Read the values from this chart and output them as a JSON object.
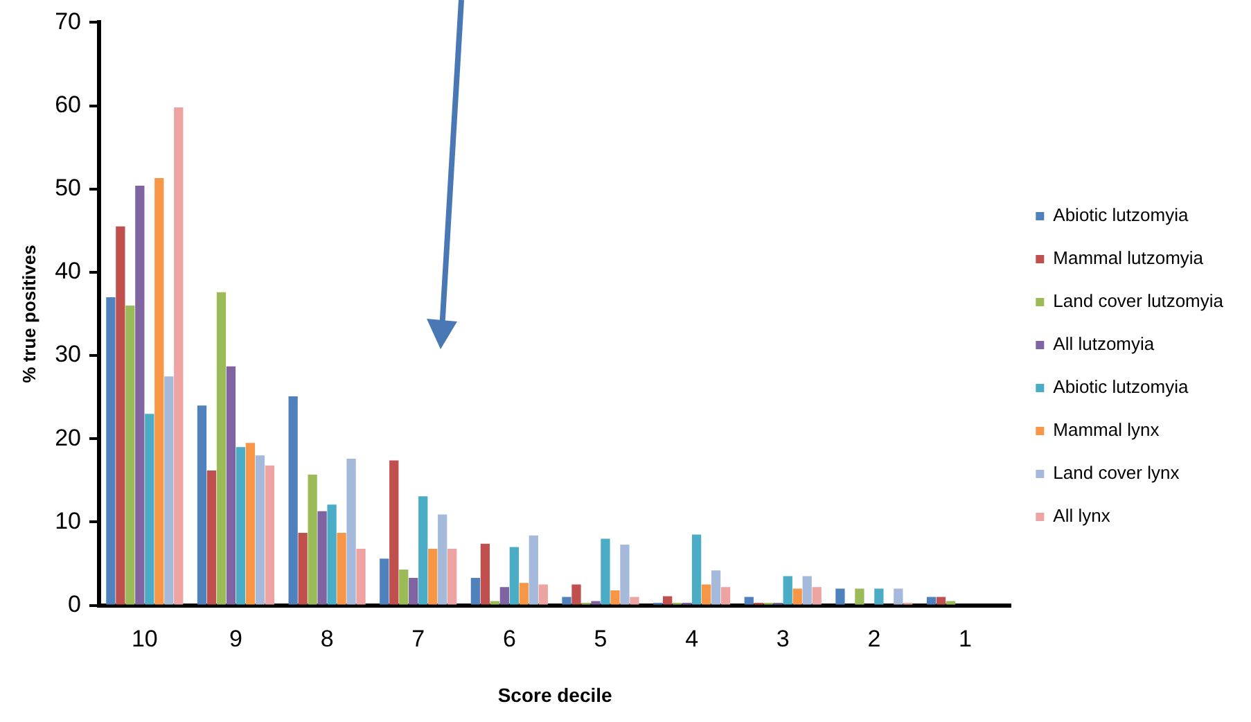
{
  "chart_data": {
    "type": "bar",
    "xlabel": "Score decile",
    "ylabel": "% true positives",
    "categories": [
      "10",
      "9",
      "8",
      "7",
      "6",
      "5",
      "4",
      "3",
      "2",
      "1"
    ],
    "ylim": [
      0,
      70
    ],
    "yticks": [
      0,
      10,
      20,
      30,
      40,
      50,
      60,
      70
    ],
    "grid": false,
    "legend": "right",
    "series": [
      {
        "name": "Abiotic lutzomyia",
        "color": "#4f81bd",
        "values": [
          37,
          24,
          25.1,
          5.6,
          3.3,
          1,
          0.3,
          1,
          2,
          1
        ]
      },
      {
        "name": "Mammal lutzomyia",
        "color": "#c0504d",
        "values": [
          45.5,
          16.2,
          8.7,
          17.4,
          7.4,
          2.5,
          1.1,
          0.3,
          0,
          1
        ]
      },
      {
        "name": "Land cover lutzomyia",
        "color": "#9bbb59",
        "values": [
          36,
          37.6,
          15.7,
          4.3,
          0.5,
          0.3,
          0.3,
          0.3,
          2,
          0.5
        ]
      },
      {
        "name": "All lutzomyia",
        "color": "#8064a2",
        "values": [
          50.4,
          28.7,
          11.3,
          3.3,
          2.2,
          0.5,
          0.3,
          0.3,
          0,
          0
        ]
      },
      {
        "name": "Abiotic lutzomyia",
        "color": "#4bacc6",
        "values": [
          23,
          19,
          12.1,
          13.1,
          7,
          8,
          8.5,
          3.5,
          2,
          0
        ]
      },
      {
        "name": "Mammal lynx",
        "color": "#f79646",
        "values": [
          51.3,
          19.5,
          8.7,
          6.8,
          2.7,
          1.8,
          2.5,
          2,
          0,
          0
        ]
      },
      {
        "name": "Land cover lynx",
        "color": "#a5b9db",
        "values": [
          27.5,
          18,
          17.6,
          10.9,
          8.4,
          7.3,
          4.2,
          3.5,
          2,
          0
        ]
      },
      {
        "name": "All lynx",
        "color": "#eda3a2",
        "values": [
          59.8,
          16.8,
          6.8,
          6.8,
          2.5,
          1,
          2.2,
          2.2,
          0.3,
          0
        ]
      }
    ]
  }
}
